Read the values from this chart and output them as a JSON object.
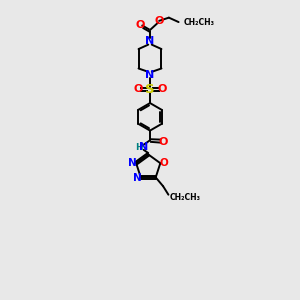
{
  "bg_color": "#e8e8e8",
  "bond_color": "#000000",
  "N_color": "#0000ff",
  "O_color": "#ff0000",
  "S_color": "#cccc00",
  "H_color": "#008080",
  "figsize": [
    3.0,
    3.0
  ],
  "dpi": 100,
  "xlim": [
    2.5,
    7.5
  ],
  "ylim": [
    0.5,
    17.5
  ]
}
